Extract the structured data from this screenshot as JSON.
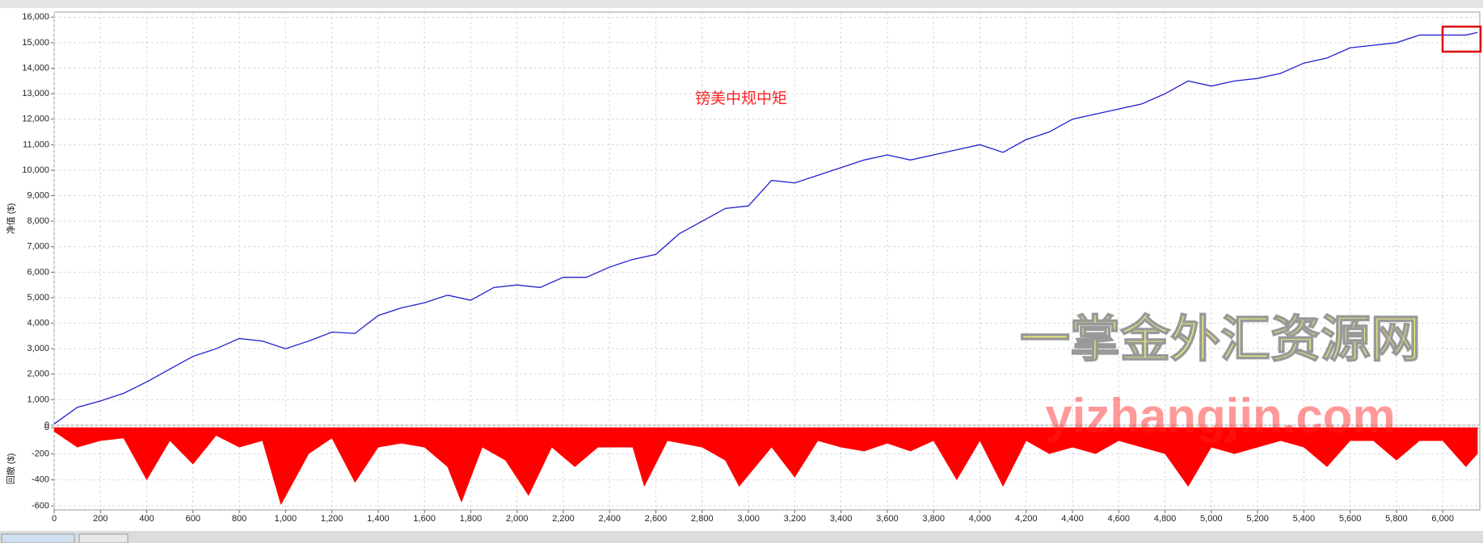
{
  "chart_data": [
    {
      "type": "line",
      "title": "镑美中规中矩",
      "ylabel": "净值 ($)",
      "annotations": [
        "一掌金外汇资源网",
        "yizhangjin.com"
      ],
      "x": [
        0,
        100,
        200,
        300,
        400,
        500,
        600,
        700,
        800,
        900,
        1000,
        1100,
        1200,
        1300,
        1400,
        1500,
        1600,
        1700,
        1800,
        1900,
        2000,
        2100,
        2200,
        2300,
        2400,
        2500,
        2600,
        2700,
        2800,
        2900,
        3000,
        3100,
        3200,
        3300,
        3400,
        3500,
        3600,
        3700,
        3800,
        3900,
        4000,
        4100,
        4200,
        4300,
        4400,
        4500,
        4600,
        4700,
        4800,
        4900,
        5000,
        5100,
        5200,
        5300,
        5400,
        5500,
        5600,
        5700,
        5800,
        5900,
        6000,
        6100,
        6150
      ],
      "series": [
        {
          "name": "净值",
          "color": "#2020d0",
          "values": [
            50,
            700,
            950,
            1250,
            1700,
            2200,
            2700,
            3000,
            3400,
            3300,
            3000,
            3300,
            3650,
            3600,
            4300,
            4600,
            4800,
            5100,
            4900,
            5400,
            5500,
            5400,
            5800,
            5800,
            6200,
            6500,
            6700,
            7500,
            8000,
            8500,
            8600,
            9600,
            9500,
            9800,
            10100,
            10400,
            10600,
            10400,
            10600,
            10800,
            11000,
            10700,
            11200,
            11500,
            12000,
            12200,
            12400,
            12600,
            13000,
            13500,
            13300,
            13500,
            13600,
            13800,
            14200,
            14400,
            14800,
            14900,
            15000,
            15300,
            15300,
            15300,
            15400
          ]
        }
      ],
      "xlim": [
        0,
        6160
      ],
      "ylim": [
        0,
        16200
      ],
      "yticks": [
        0,
        {
          "value": 1000,
          "label": "1,000"
        },
        {
          "value": 2000,
          "label": "2,000"
        },
        {
          "value": 3000,
          "label": "3,000"
        },
        {
          "value": 4000,
          "label": "4,000"
        },
        {
          "value": 5000,
          "label": "5,000"
        },
        {
          "value": 6000,
          "label": "6,000"
        },
        {
          "value": 7000,
          "label": "7,000"
        },
        {
          "value": 8000,
          "label": "8,000"
        },
        {
          "value": 9000,
          "label": "9,000"
        },
        {
          "value": 10000,
          "label": "10,000"
        },
        {
          "value": 11000,
          "label": "11,000"
        },
        {
          "value": 12000,
          "label": "12,000"
        },
        {
          "value": 13000,
          "label": "13,000"
        },
        {
          "value": 14000,
          "label": "14,000"
        },
        {
          "value": 15000,
          "label": "15,000"
        },
        {
          "value": 16000,
          "label": "16,000"
        }
      ],
      "grid": true
    },
    {
      "type": "area",
      "ylabel": "回撤 ($)",
      "x": [
        0,
        100,
        200,
        300,
        400,
        500,
        600,
        700,
        800,
        900,
        980,
        1100,
        1200,
        1300,
        1400,
        1500,
        1600,
        1700,
        1760,
        1850,
        1950,
        2050,
        2150,
        2250,
        2350,
        2500,
        2550,
        2650,
        2800,
        2900,
        2960,
        3100,
        3200,
        3300,
        3400,
        3500,
        3600,
        3700,
        3800,
        3900,
        4000,
        4100,
        4200,
        4300,
        4400,
        4500,
        4600,
        4700,
        4800,
        4900,
        5000,
        5100,
        5200,
        5300,
        5400,
        5500,
        5600,
        5700,
        5800,
        5900,
        6000,
        6100,
        6150
      ],
      "series": [
        {
          "name": "回撤",
          "color": "#ff0000",
          "values": [
            -30,
            -150,
            -100,
            -80,
            -400,
            -100,
            -280,
            -60,
            -150,
            -100,
            -590,
            -200,
            -80,
            -420,
            -150,
            -120,
            -150,
            -300,
            -570,
            -150,
            -250,
            -520,
            -150,
            -300,
            -150,
            -150,
            -450,
            -100,
            -150,
            -250,
            -450,
            -150,
            -380,
            -100,
            -150,
            -180,
            -120,
            -180,
            -100,
            -400,
            -100,
            -450,
            -100,
            -200,
            -150,
            -200,
            -100,
            -150,
            -200,
            -450,
            -150,
            -200,
            -150,
            -100,
            -150,
            -300,
            -100,
            -100,
            -250,
            -100,
            -100,
            -300,
            -200
          ]
        }
      ],
      "xlim": [
        0,
        6160
      ],
      "ylim": [
        -630,
        0
      ],
      "xticks": [
        0,
        200,
        400,
        600,
        800,
        {
          "value": 1000,
          "label": "1,000"
        },
        {
          "value": 1200,
          "label": "1,200"
        },
        {
          "value": 1400,
          "label": "1,400"
        },
        {
          "value": 1600,
          "label": "1,600"
        },
        {
          "value": 1800,
          "label": "1,800"
        },
        {
          "value": 2000,
          "label": "2,000"
        },
        {
          "value": 2200,
          "label": "2,200"
        },
        {
          "value": 2400,
          "label": "2,400"
        },
        {
          "value": 2600,
          "label": "2,600"
        },
        {
          "value": 2800,
          "label": "2,800"
        },
        {
          "value": 3000,
          "label": "3,000"
        },
        {
          "value": 3200,
          "label": "3,200"
        },
        {
          "value": 3400,
          "label": "3,400"
        },
        {
          "value": 3600,
          "label": "3,600"
        },
        {
          "value": 3800,
          "label": "3,800"
        },
        {
          "value": 4000,
          "label": "4,000"
        },
        {
          "value": 4200,
          "label": "4,200"
        },
        {
          "value": 4400,
          "label": "4,400"
        },
        {
          "value": 4600,
          "label": "4,600"
        },
        {
          "value": 4800,
          "label": "4,800"
        },
        {
          "value": 5000,
          "label": "5,000"
        },
        {
          "value": 5200,
          "label": "5,200"
        },
        {
          "value": 5400,
          "label": "5,400"
        },
        {
          "value": 5600,
          "label": "5,600"
        },
        {
          "value": 5800,
          "label": "5,800"
        },
        {
          "value": 6000,
          "label": "6,000"
        }
      ],
      "yticks": [
        0,
        -200,
        -400,
        -600
      ],
      "grid": true
    }
  ]
}
